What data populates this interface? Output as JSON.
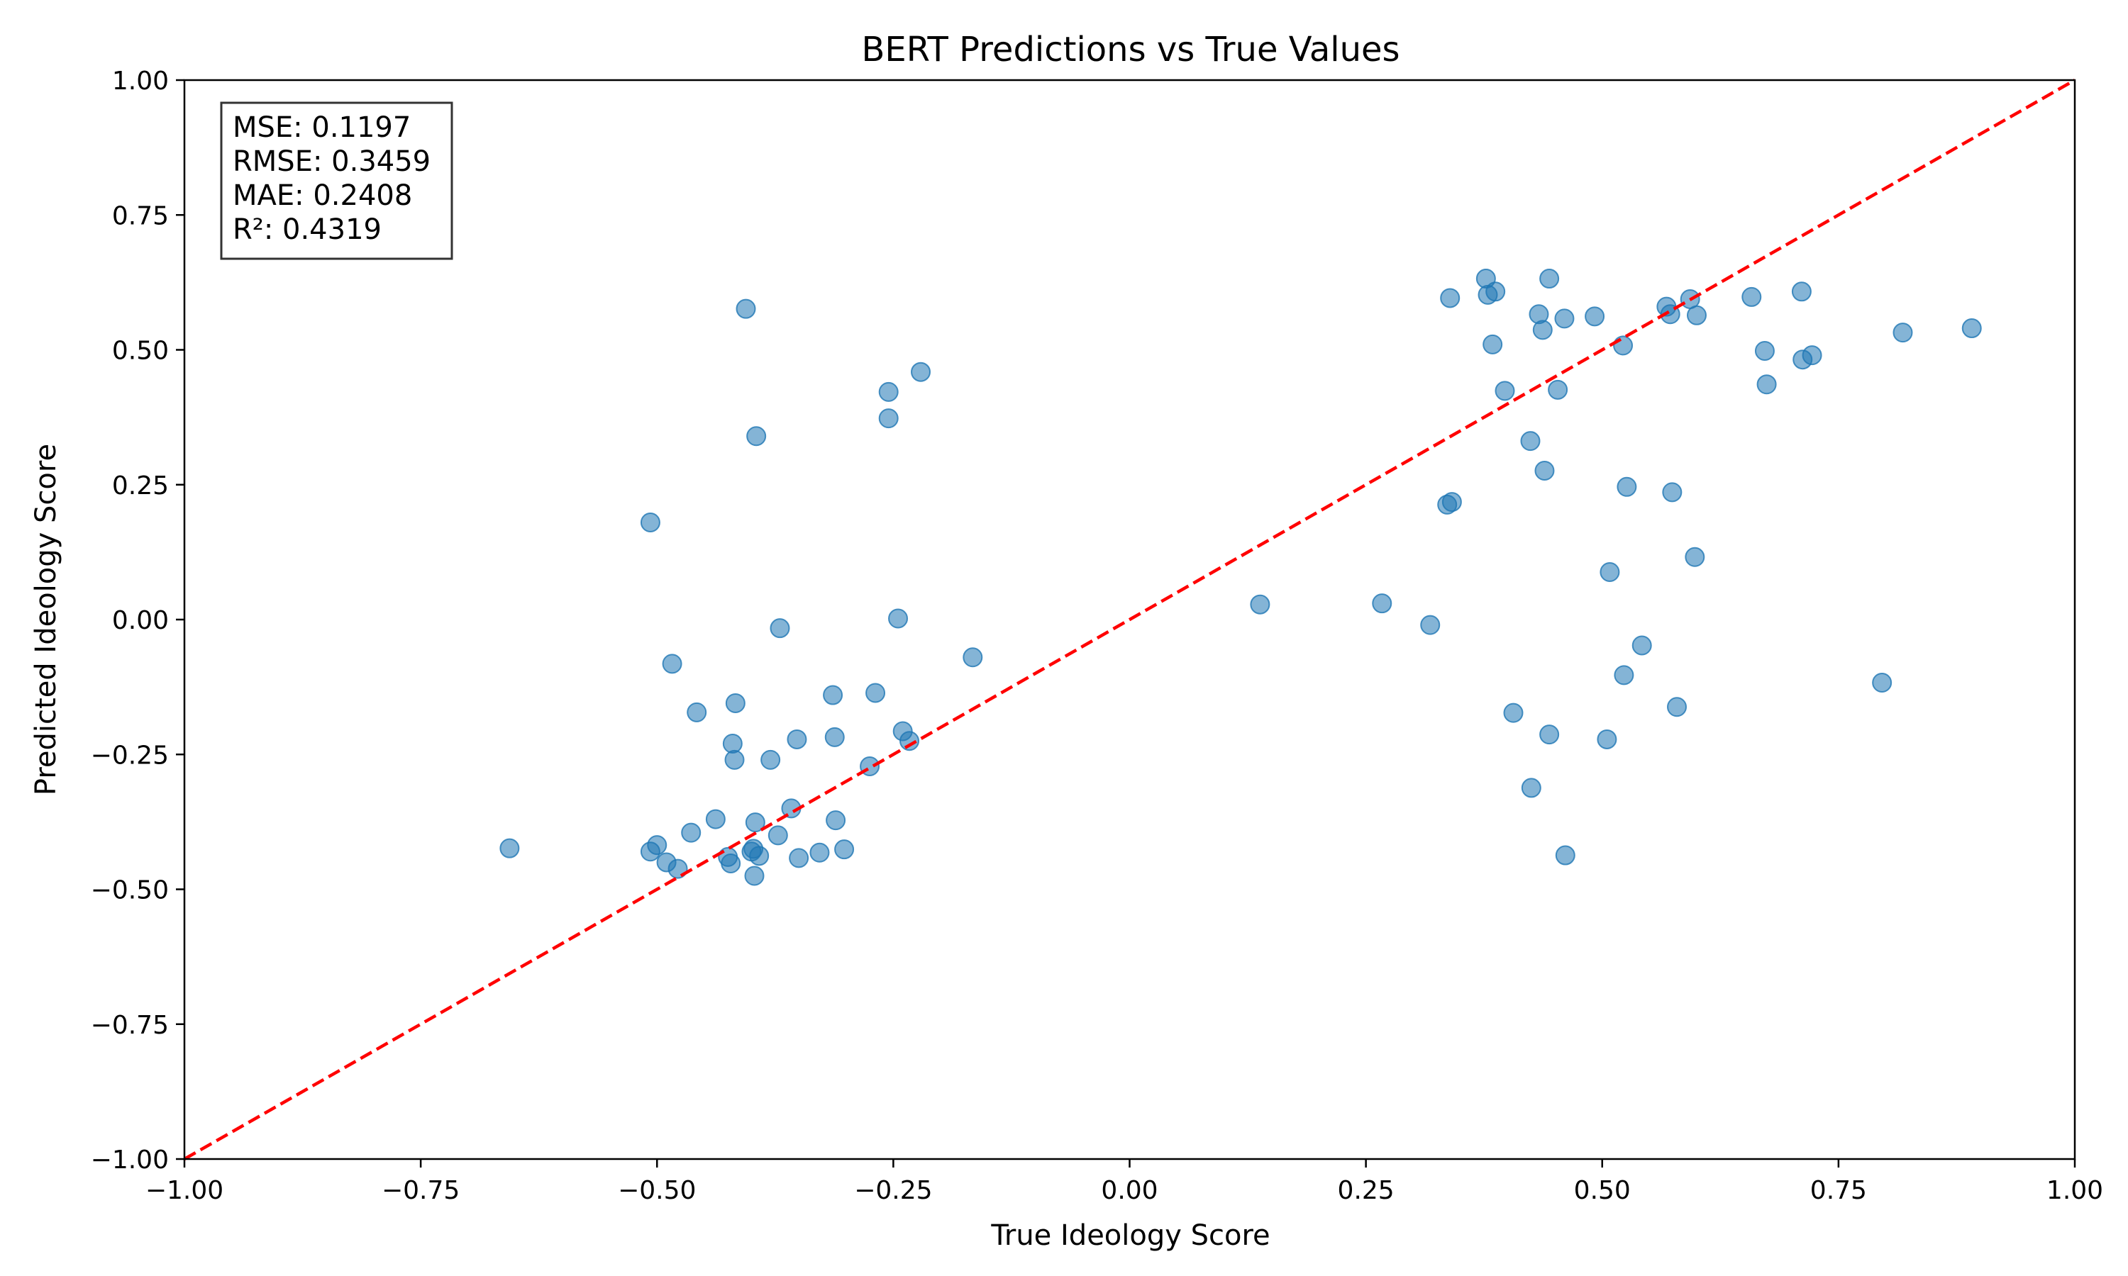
{
  "chart_data": {
    "type": "scatter",
    "title": "BERT Predictions vs True Values",
    "xlabel": "True Ideology Score",
    "ylabel": "Predicted Ideology Score",
    "xlim": [
      -1.0,
      1.0
    ],
    "ylim": [
      -1.0,
      1.0
    ],
    "xticks": [
      "−1.00",
      "−0.75",
      "−0.50",
      "−0.25",
      "0.00",
      "0.25",
      "0.50",
      "0.75",
      "1.00"
    ],
    "yticks": [
      "−1.00",
      "−0.75",
      "−0.50",
      "−0.25",
      "0.00",
      "0.25",
      "0.50",
      "0.75",
      "1.00"
    ],
    "grid": false,
    "point_color": "#1f77b4",
    "reference_line": {
      "x": [
        -1.0,
        1.0
      ],
      "y": [
        -1.0,
        1.0
      ],
      "color": "#ff0000",
      "style": "dashed"
    },
    "stats": [
      "MSE: 0.1197",
      "RMSE: 0.3459",
      "MAE: 0.2408",
      "R²: 0.4319"
    ],
    "points": [
      [
        -0.656,
        -0.424
      ],
      [
        -0.507,
        0.18
      ],
      [
        -0.507,
        -0.43
      ],
      [
        -0.5,
        -0.418
      ],
      [
        -0.49,
        -0.45
      ],
      [
        -0.484,
        -0.082
      ],
      [
        -0.478,
        -0.462
      ],
      [
        -0.464,
        -0.395
      ],
      [
        -0.458,
        -0.172
      ],
      [
        -0.438,
        -0.37
      ],
      [
        -0.425,
        -0.44
      ],
      [
        -0.422,
        -0.452
      ],
      [
        -0.42,
        -0.23
      ],
      [
        -0.418,
        -0.26
      ],
      [
        -0.417,
        -0.155
      ],
      [
        -0.406,
        0.576
      ],
      [
        -0.4,
        -0.43
      ],
      [
        -0.398,
        -0.425
      ],
      [
        -0.397,
        -0.475
      ],
      [
        -0.396,
        -0.376
      ],
      [
        -0.395,
        0.34
      ],
      [
        -0.392,
        -0.438
      ],
      [
        -0.38,
        -0.26
      ],
      [
        -0.372,
        -0.4
      ],
      [
        -0.37,
        -0.016
      ],
      [
        -0.358,
        -0.35
      ],
      [
        -0.352,
        -0.222
      ],
      [
        -0.35,
        -0.442
      ],
      [
        -0.328,
        -0.432
      ],
      [
        -0.314,
        -0.14
      ],
      [
        -0.312,
        -0.218
      ],
      [
        -0.311,
        -0.372
      ],
      [
        -0.302,
        -0.426
      ],
      [
        -0.275,
        -0.272
      ],
      [
        -0.269,
        -0.136
      ],
      [
        -0.255,
        0.422
      ],
      [
        -0.255,
        0.373
      ],
      [
        -0.245,
        0.002
      ],
      [
        -0.24,
        -0.207
      ],
      [
        -0.233,
        -0.225
      ],
      [
        -0.221,
        0.459
      ],
      [
        -0.166,
        -0.07
      ],
      [
        0.138,
        0.028
      ],
      [
        0.267,
        0.03
      ],
      [
        0.318,
        -0.01
      ],
      [
        0.336,
        0.213
      ],
      [
        0.339,
        0.596
      ],
      [
        0.341,
        0.218
      ],
      [
        0.377,
        0.632
      ],
      [
        0.379,
        0.602
      ],
      [
        0.384,
        0.51
      ],
      [
        0.387,
        0.608
      ],
      [
        0.397,
        0.424
      ],
      [
        0.406,
        -0.173
      ],
      [
        0.424,
        0.331
      ],
      [
        0.425,
        -0.312
      ],
      [
        0.433,
        0.566
      ],
      [
        0.437,
        0.537
      ],
      [
        0.439,
        0.276
      ],
      [
        0.444,
        0.632
      ],
      [
        0.444,
        -0.213
      ],
      [
        0.453,
        0.426
      ],
      [
        0.46,
        0.558
      ],
      [
        0.461,
        -0.437
      ],
      [
        0.492,
        0.562
      ],
      [
        0.505,
        -0.222
      ],
      [
        0.508,
        0.088
      ],
      [
        0.522,
        0.508
      ],
      [
        0.523,
        -0.103
      ],
      [
        0.526,
        0.246
      ],
      [
        0.542,
        -0.048
      ],
      [
        0.568,
        0.58
      ],
      [
        0.572,
        0.566
      ],
      [
        0.574,
        0.236
      ],
      [
        0.579,
        -0.162
      ],
      [
        0.593,
        0.594
      ],
      [
        0.598,
        0.116
      ],
      [
        0.6,
        0.564
      ],
      [
        0.658,
        0.598
      ],
      [
        0.672,
        0.498
      ],
      [
        0.674,
        0.436
      ],
      [
        0.711,
        0.608
      ],
      [
        0.712,
        0.482
      ],
      [
        0.722,
        0.49
      ],
      [
        0.796,
        -0.117
      ],
      [
        0.818,
        0.532
      ],
      [
        0.891,
        0.54
      ]
    ]
  }
}
